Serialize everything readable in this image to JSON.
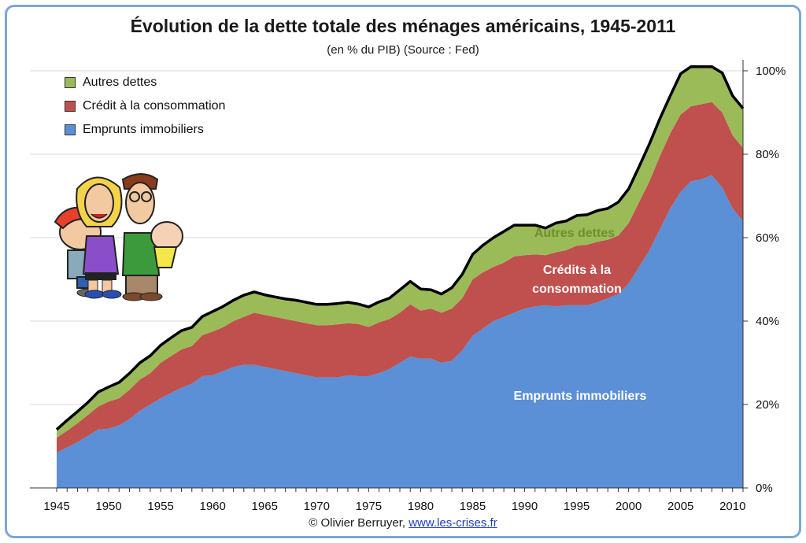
{
  "chart_data": {
    "type": "area",
    "title": "Évolution de la dette totale des ménages américains, 1945-2011",
    "subtitle": "(en % du PIB) (Source : Fed)",
    "xlabel": "",
    "ylabel": "",
    "xlim": [
      1945,
      2011
    ],
    "ylim": [
      0,
      100
    ],
    "x_ticks": [
      "1945",
      "1950",
      "1955",
      "1960",
      "1965",
      "1970",
      "1975",
      "1980",
      "1985",
      "1990",
      "1995",
      "2000",
      "2005",
      "2010"
    ],
    "y_ticks": [
      "0%",
      "20%",
      "40%",
      "60%",
      "80%",
      "100%"
    ],
    "stacked": true,
    "grid": true,
    "legend_position": "top-left",
    "x": [
      1945,
      1946,
      1947,
      1948,
      1949,
      1950,
      1951,
      1952,
      1953,
      1954,
      1955,
      1956,
      1957,
      1958,
      1959,
      1960,
      1961,
      1962,
      1963,
      1964,
      1965,
      1966,
      1967,
      1968,
      1969,
      1970,
      1971,
      1972,
      1973,
      1974,
      1975,
      1976,
      1977,
      1978,
      1979,
      1980,
      1981,
      1982,
      1983,
      1984,
      1985,
      1986,
      1987,
      1988,
      1989,
      1990,
      1991,
      1992,
      1993,
      1994,
      1995,
      1996,
      1997,
      1998,
      1999,
      2000,
      2001,
      2002,
      2003,
      2004,
      2005,
      2006,
      2007,
      2008,
      2009,
      2010,
      2011
    ],
    "series": [
      {
        "name": "Emprunts immobiliers",
        "color": "#5b8fd6",
        "values": [
          8.5,
          9.7,
          11,
          12.5,
          14,
          14.2,
          15,
          16.5,
          18.5,
          20,
          21.5,
          22.8,
          24,
          25,
          26.8,
          27,
          28,
          29,
          29.5,
          29.5,
          29,
          28.5,
          28,
          27.5,
          27,
          26.5,
          26.5,
          26.5,
          27,
          26.8,
          26.8,
          27.5,
          28.5,
          30,
          31.5,
          31,
          31,
          30,
          30.5,
          33,
          36.5,
          38.2,
          40,
          41,
          42,
          43,
          43.5,
          43.8,
          43.5,
          43.8,
          43.8,
          43.8,
          44.5,
          45.5,
          46.5,
          49,
          53,
          57,
          62,
          67,
          71,
          73.5,
          74,
          75,
          72,
          67,
          64
        ]
      },
      {
        "name": "Crédit à la consommation",
        "color": "#c0504d",
        "values": [
          3.5,
          4,
          4.5,
          5,
          5.5,
          6.5,
          6.5,
          7,
          7.5,
          7.5,
          8.5,
          8.8,
          9.2,
          9,
          9.8,
          10.5,
          10.5,
          11,
          11.5,
          12.5,
          12.5,
          12.5,
          12.5,
          12.5,
          12.5,
          12.5,
          12.5,
          12.7,
          12.5,
          12.5,
          11.8,
          12.2,
          12,
          12,
          12.5,
          11.5,
          12,
          12,
          12.5,
          12.5,
          13.5,
          13.5,
          13,
          13,
          13.5,
          12.8,
          12.5,
          12,
          13,
          13.2,
          14.3,
          14.5,
          14.5,
          14,
          14,
          14.5,
          15.5,
          16.5,
          17.5,
          18,
          18.5,
          18,
          18,
          17.5,
          18,
          17.5,
          17.5
        ]
      },
      {
        "name": "Autres dettes",
        "color": "#9bbb59",
        "values": [
          2,
          2.5,
          2.8,
          3,
          3.5,
          3.5,
          3.8,
          4,
          4,
          4.2,
          4.2,
          4.4,
          4.5,
          4.5,
          4.5,
          4.8,
          5,
          5,
          5.2,
          5,
          4.8,
          4.8,
          4.8,
          5,
          5,
          5,
          5,
          5,
          5,
          4.8,
          4.8,
          4.9,
          5,
          5.5,
          5.5,
          5.2,
          4.5,
          4.5,
          5,
          5.7,
          6,
          6.5,
          7,
          7.5,
          7.5,
          7.2,
          7,
          6.5,
          7,
          7,
          7.2,
          7.2,
          7.5,
          7.5,
          8,
          8.2,
          8.5,
          9,
          9,
          9,
          9.8,
          9.5,
          9,
          8.5,
          9.5,
          9.5,
          9.5
        ]
      }
    ]
  },
  "legend": {
    "items": [
      {
        "label": "Autres dettes",
        "color": "#9bbb59"
      },
      {
        "label": "Crédit à la consommation",
        "color": "#c0504d"
      },
      {
        "label": "Emprunts immobiliers",
        "color": "#5b8fd6"
      }
    ]
  },
  "annotations": {
    "autres": "Autres dettes",
    "credits_line1": "Crédits à la",
    "credits_line2": "consommation",
    "emprunts": "Emprunts immobiliers"
  },
  "credit": {
    "prefix": "© Olivier Berruyer, ",
    "link_text": "www.les-crises.fr"
  }
}
